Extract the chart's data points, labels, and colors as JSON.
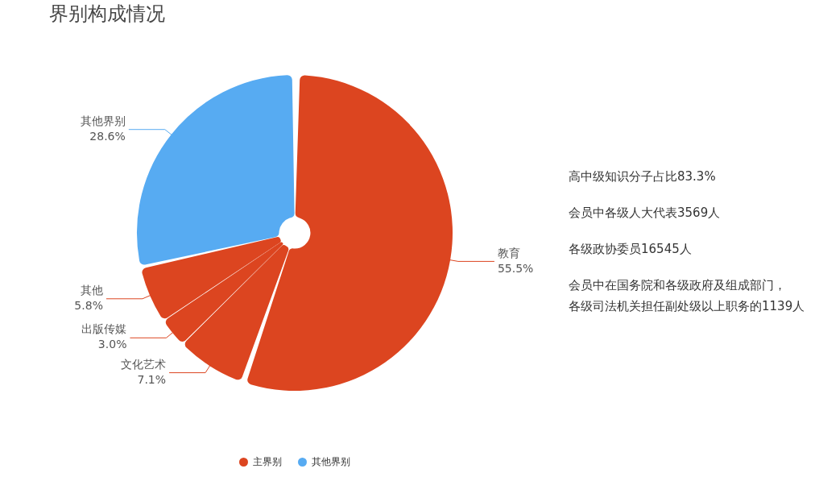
{
  "chart_data": {
    "type": "pie",
    "title": "界别构成情况",
    "categories": [
      "教育",
      "文化艺术",
      "出版传媒",
      "其他",
      "其他界别"
    ],
    "values": [
      55.5,
      7.1,
      3.0,
      5.8,
      28.6
    ],
    "colors": [
      "#dc4520",
      "#dc4520",
      "#dc4520",
      "#dc4520",
      "#57abf2"
    ],
    "value_labels": [
      "55.5%",
      "7.1%",
      "3.0%",
      "5.8%",
      "28.6%"
    ],
    "annotations": [
      "高中级知识分子占比83.3%",
      "会员中各级人大代表3569人",
      "各级政协委员16545人",
      "会员中在国务院和各级政府及组成部门，各级司法机关担任副处级以上职务的1139人",
      "主界别",
      "其他界别"
    ]
  }
}
